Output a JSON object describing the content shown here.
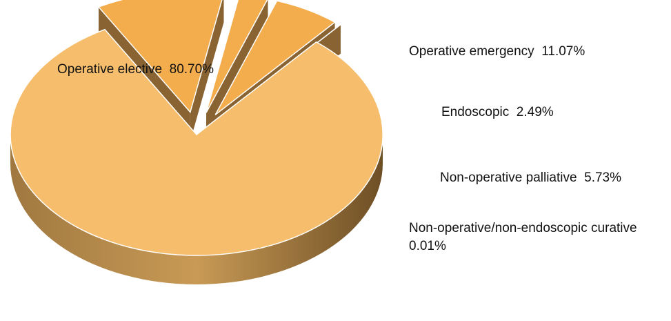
{
  "chart_data": {
    "type": "pie",
    "categories": [
      "Operative elective",
      "Operative emergency",
      "Endoscopic",
      "Non-operative palliative",
      "Non-operative/non-endoscopic curative"
    ],
    "values": [
      80.7,
      11.07,
      2.49,
      5.73,
      0.01
    ],
    "value_labels": [
      "80.70%",
      "11.07%",
      "2.49%",
      "5.73%",
      "0.01%"
    ],
    "colors": [
      "#f6be6c",
      "#f4ad4c",
      "#f4ad4c",
      "#f4ad4c",
      "#f4ad4c"
    ]
  }
}
